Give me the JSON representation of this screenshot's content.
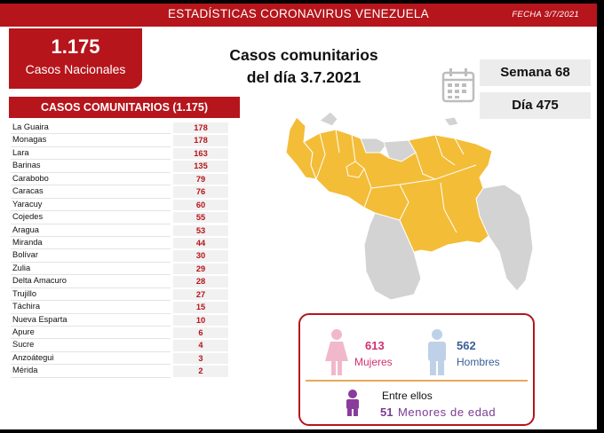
{
  "banner": {
    "title": "ESTADÍSTICAS CORONAVIRUS VENEZUELA",
    "date": "FECHA 3/7/2021"
  },
  "national": {
    "total": "1.175",
    "label": "Casos Nacionales"
  },
  "headline": {
    "line1": "Casos comunitarios",
    "line2": "del día 3.7.2021"
  },
  "week": "Semana 68",
  "day": "Día 475",
  "list_title": "CASOS COMUNITARIOS (1.175)",
  "states": [
    {
      "name": "La Guaira",
      "value": "178"
    },
    {
      "name": "Monagas",
      "value": "178"
    },
    {
      "name": "Lara",
      "value": "163"
    },
    {
      "name": "Barinas",
      "value": "135"
    },
    {
      "name": "Carabobo",
      "value": "79"
    },
    {
      "name": "Caracas",
      "value": "76"
    },
    {
      "name": "Yaracuy",
      "value": "60"
    },
    {
      "name": "Cojedes",
      "value": "55"
    },
    {
      "name": "Aragua",
      "value": "53"
    },
    {
      "name": "Miranda",
      "value": "44"
    },
    {
      "name": "Bolívar",
      "value": "30"
    },
    {
      "name": "Zulia",
      "value": "29"
    },
    {
      "name": "Delta Amacuro",
      "value": "28"
    },
    {
      "name": "Trujillo",
      "value": "27"
    },
    {
      "name": "Táchira",
      "value": "15"
    },
    {
      "name": "Nueva Esparta",
      "value": "10"
    },
    {
      "name": "Apure",
      "value": "6"
    },
    {
      "name": "Sucre",
      "value": "4"
    },
    {
      "name": "Anzoátegui",
      "value": "3"
    },
    {
      "name": "Mérida",
      "value": "2"
    }
  ],
  "gender": {
    "women_count": "613",
    "women_label": "Mujeres",
    "men_count": "562",
    "men_label": "Hombres",
    "minors_intro": "Entre ellos",
    "minors_count": "51",
    "minors_label": "Menores de edad"
  },
  "colors": {
    "brand_red": "#b5151b",
    "map_affected": "#f3bd38",
    "map_other": "#d3d3d3",
    "women": "#d0306f",
    "men": "#3a5f96",
    "minors": "#7a3b93"
  },
  "icons": [
    "calendar-icon",
    "woman-icon",
    "man-icon",
    "child-icon"
  ]
}
